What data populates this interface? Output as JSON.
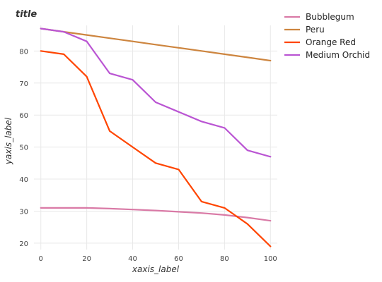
{
  "chart_data": {
    "type": "line",
    "title": "title",
    "xlabel": "xaxis_label",
    "ylabel": "yaxis_label",
    "x": [
      0,
      10,
      20,
      30,
      40,
      50,
      60,
      70,
      80,
      90,
      100
    ],
    "xticks": [
      0,
      20,
      40,
      60,
      80,
      100
    ],
    "yticks": [
      20,
      30,
      40,
      50,
      60,
      70,
      80
    ],
    "xlim": [
      -3,
      103
    ],
    "ylim": [
      18,
      88
    ],
    "grid": true,
    "legend": "right",
    "series": [
      {
        "name": "Bubblegum",
        "color": "#d97aa6",
        "values": [
          31,
          31,
          31,
          30.8,
          30.5,
          30.2,
          29.8,
          29.4,
          28.8,
          28.0,
          27.0
        ]
      },
      {
        "name": "Peru",
        "color": "#cd853f",
        "values": [
          87,
          86,
          85,
          84,
          83,
          82,
          81,
          80,
          79,
          78,
          77
        ]
      },
      {
        "name": "Orange Red",
        "color": "#ff4500",
        "values": [
          80,
          79,
          72,
          55,
          50,
          45,
          43,
          33,
          31,
          26,
          19
        ]
      },
      {
        "name": "Medium Orchid",
        "color": "#ba55d3",
        "values": [
          87,
          86,
          83,
          73,
          71,
          64,
          61,
          58,
          56,
          49,
          47
        ]
      }
    ]
  }
}
